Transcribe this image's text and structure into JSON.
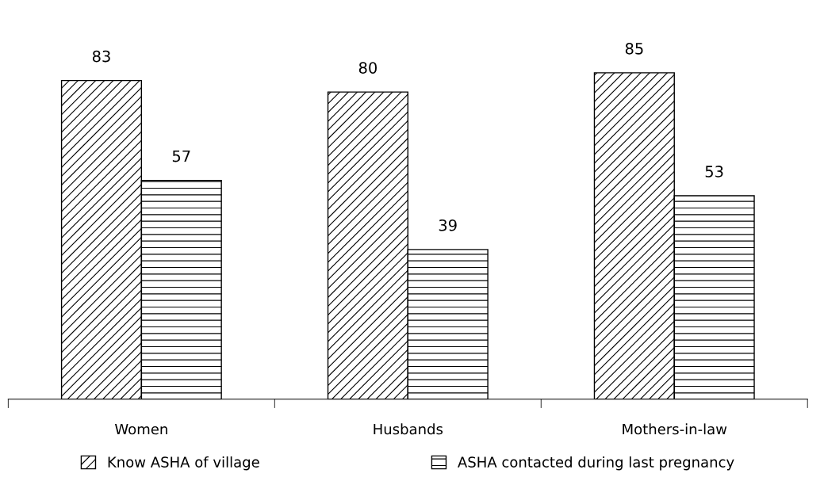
{
  "chart_data": {
    "type": "bar",
    "categories": [
      "Women",
      "Husbands",
      "Mothers-in-law"
    ],
    "series": [
      {
        "name": "Know ASHA of village",
        "color": "#000000",
        "values": [
          83,
          80,
          85
        ]
      },
      {
        "name": "ASHA contacted during last pregnancy",
        "color": "#000000",
        "values": [
          57,
          39,
          53
        ]
      }
    ],
    "data_labels": true,
    "legend": "bottom",
    "grid": false
  }
}
